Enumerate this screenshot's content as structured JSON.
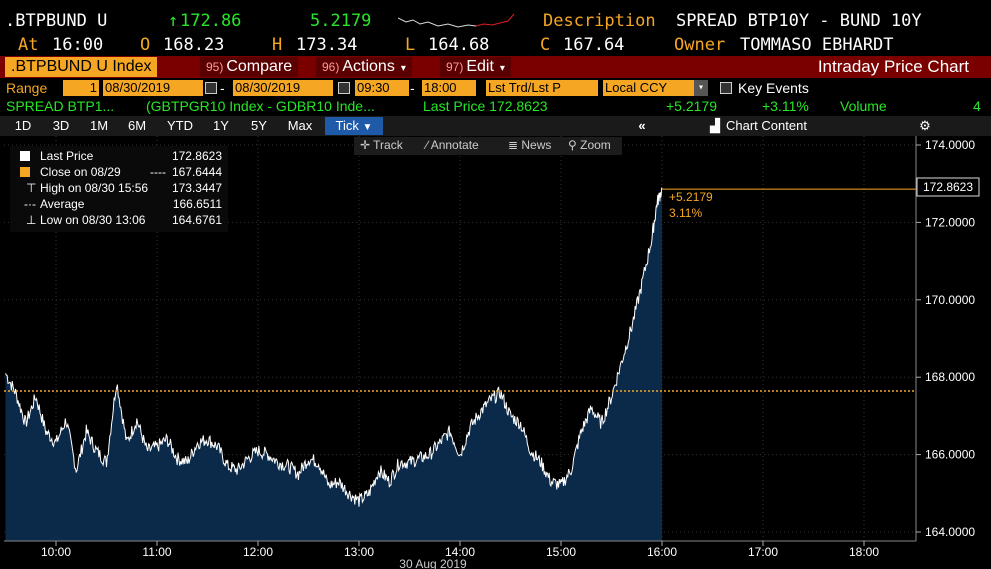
{
  "header": {
    "ticker": ".BTPBUND U",
    "last_price": "172.86",
    "change": "5.2179",
    "description_label": "Description",
    "description": "SPREAD BTP10Y - BUND 10Y",
    "at_label": "At",
    "time": "16:00",
    "open_label": "O",
    "open": "168.23",
    "high_label": "H",
    "high": "173.34",
    "low_label": "L",
    "low": "164.68",
    "close_label": "C",
    "close": "167.64",
    "owner_label": "Owner",
    "owner": "TOMMASO EBHARDT"
  },
  "toolbar": {
    "index_tab": ".BTPBUND U Index",
    "compare_num": "95)",
    "compare": "Compare",
    "actions_num": "96)",
    "actions": "Actions",
    "edit_num": "97)",
    "edit": "Edit",
    "title": "Intraday Price Chart"
  },
  "range": {
    "label": "Range",
    "qty": "1",
    "start_date": "08/30/2019",
    "end_date": "08/30/2019",
    "start_time": "09:30",
    "end_time": "18:00",
    "mode": "Lst Trd/Lst P",
    "currency": "Local CCY",
    "key_events": "Key Events"
  },
  "info": {
    "name": "SPREAD BTP1...",
    "formula": "(GBTPGR10 Index - GDBR10 Inde...",
    "last_price_text": "Last Price 172.8623",
    "change": "+5.2179",
    "change_pct": "+3.11%",
    "volume_label": "Volume",
    "volume": "4"
  },
  "periods": [
    "1D",
    "3D",
    "1M",
    "6M",
    "YTD",
    "1Y",
    "5Y",
    "Max"
  ],
  "active_period": "Tick",
  "chart_content": "Chart Content",
  "chart_tools": [
    "Track",
    "Annotate",
    "News",
    "Zoom"
  ],
  "legend": {
    "last_price_label": "Last Price",
    "last_price": "172.8623",
    "close_label": "Close on 08/29",
    "close_dash": "----",
    "close": "167.6444",
    "high_label": "High on 08/30 15:56",
    "high": "173.3447",
    "average_label": "Average",
    "average": "166.6511",
    "low_label": "Low on 08/30 13:06",
    "low": "164.6761"
  },
  "annotation": {
    "change": "+5.2179",
    "pct": "3.11%",
    "price_tag": "172.8623"
  },
  "colors": {
    "orange": "#f5a623",
    "green": "#27e627",
    "area": "#0b2a4a",
    "background": "#000000"
  },
  "chart_data": {
    "type": "area",
    "xlabel": "30 Aug 2019",
    "x_ticks": [
      "10:00",
      "11:00",
      "12:00",
      "13:00",
      "14:00",
      "15:00",
      "16:00",
      "17:00",
      "18:00"
    ],
    "y_ticks": [
      "164.0000",
      "166.0000",
      "168.0000",
      "170.0000",
      "172.0000",
      "174.0000"
    ],
    "ylim": [
      163.8,
      174.1
    ],
    "xlim_hours": [
      9.5,
      18.5
    ],
    "reference_line": 167.6444,
    "series": [
      {
        "x": [
          9.5,
          9.6,
          9.7,
          9.8,
          9.9,
          10.0,
          10.1,
          10.2,
          10.3,
          10.4,
          10.5,
          10.6,
          10.7,
          10.8,
          10.9,
          11.0,
          11.1,
          11.2,
          11.3,
          11.4,
          11.5,
          11.6,
          11.7,
          11.8,
          11.9,
          12.0,
          12.1,
          12.2,
          12.3,
          12.4,
          12.5,
          12.6,
          12.7,
          12.8,
          12.9,
          13.0,
          13.1,
          13.2,
          13.3,
          13.4,
          13.5,
          13.6,
          13.7,
          13.8,
          13.9,
          14.0,
          14.1,
          14.2,
          14.3,
          14.4,
          14.5,
          14.6,
          14.7,
          14.8,
          14.9,
          15.0,
          15.1,
          15.2,
          15.3,
          15.4,
          15.5,
          15.6,
          15.7,
          15.8,
          15.9,
          15.95,
          16.0
        ],
        "y": [
          168.1,
          167.6,
          166.8,
          167.5,
          166.6,
          166.3,
          166.9,
          165.6,
          166.6,
          166.1,
          165.8,
          167.9,
          166.3,
          166.9,
          166.1,
          166.2,
          166.4,
          165.9,
          165.8,
          166.3,
          166.4,
          166.2,
          165.7,
          165.6,
          165.9,
          166.1,
          166.0,
          165.8,
          165.7,
          165.5,
          165.9,
          165.8,
          165.2,
          165.3,
          165.0,
          164.8,
          165.0,
          165.6,
          165.3,
          165.8,
          165.8,
          165.9,
          166.0,
          166.3,
          166.6,
          166.0,
          166.7,
          167.1,
          167.4,
          167.6,
          167.0,
          166.8,
          166.1,
          165.8,
          165.3,
          165.2,
          165.6,
          166.6,
          167.2,
          166.8,
          167.5,
          168.4,
          169.3,
          170.4,
          171.6,
          172.5,
          172.86
        ]
      }
    ]
  }
}
